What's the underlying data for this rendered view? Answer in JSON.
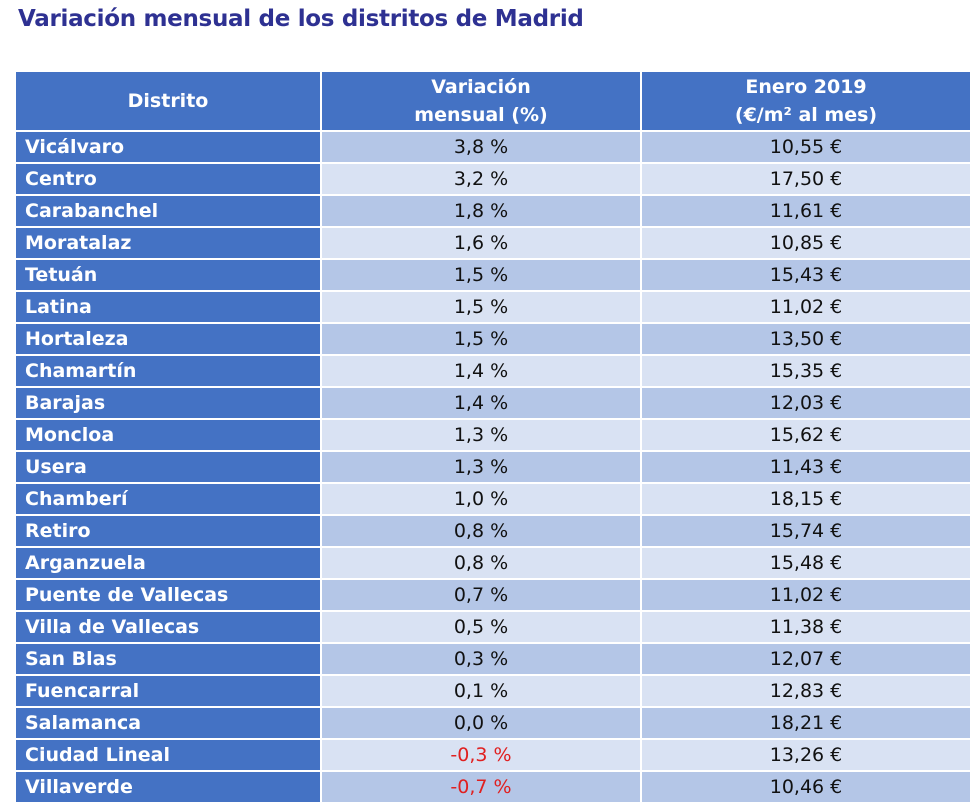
{
  "title": "Variación mensual de los distritos de Madrid",
  "colors": {
    "header": "#4472c4",
    "row_dark": "#b4c6e7",
    "row_light": "#d9e2f3",
    "title": "#2e3192",
    "negative": "#e02020"
  },
  "chart_data": {
    "type": "table",
    "columns": [
      "Distrito",
      "Variación mensual (%)",
      "Enero 2019 (€/m² al mes)"
    ],
    "header": {
      "col1": "Distrito",
      "col2_line1": "Variación",
      "col2_line2": "mensual (%)",
      "col3_line1": "Enero 2019",
      "col3_line2": "(€/m² al mes)"
    },
    "rows": [
      {
        "distrito": "Vicálvaro",
        "variacion": "3,8 %",
        "precio": "10,55 €"
      },
      {
        "distrito": "Centro",
        "variacion": "3,2 %",
        "precio": "17,50 €"
      },
      {
        "distrito": "Carabanchel",
        "variacion": "1,8 %",
        "precio": "11,61 €"
      },
      {
        "distrito": "Moratalaz",
        "variacion": "1,6 %",
        "precio": "10,85 €"
      },
      {
        "distrito": "Tetuán",
        "variacion": "1,5 %",
        "precio": "15,43 €"
      },
      {
        "distrito": "Latina",
        "variacion": "1,5 %",
        "precio": "11,02 €"
      },
      {
        "distrito": "Hortaleza",
        "variacion": "1,5 %",
        "precio": "13,50 €"
      },
      {
        "distrito": "Chamartín",
        "variacion": "1,4 %",
        "precio": "15,35 €"
      },
      {
        "distrito": "Barajas",
        "variacion": "1,4 %",
        "precio": "12,03 €"
      },
      {
        "distrito": "Moncloa",
        "variacion": "1,3 %",
        "precio": "15,62 €"
      },
      {
        "distrito": "Usera",
        "variacion": "1,3 %",
        "precio": "11,43 €"
      },
      {
        "distrito": "Chamberí",
        "variacion": "1,0 %",
        "precio": "18,15 €"
      },
      {
        "distrito": "Retiro",
        "variacion": "0,8 %",
        "precio": "15,74 €"
      },
      {
        "distrito": "Arganzuela",
        "variacion": "0,8 %",
        "precio": "15,48 €"
      },
      {
        "distrito": "Puente de Vallecas",
        "variacion": "0,7 %",
        "precio": "11,02 €"
      },
      {
        "distrito": "Villa de Vallecas",
        "variacion": "0,5 %",
        "precio": "11,38 €"
      },
      {
        "distrito": "San Blas",
        "variacion": "0,3 %",
        "precio": "12,07 €"
      },
      {
        "distrito": "Fuencarral",
        "variacion": "0,1 %",
        "precio": "12,83 €"
      },
      {
        "distrito": "Salamanca",
        "variacion": "0,0 %",
        "precio": "18,21 €"
      },
      {
        "distrito": "Ciudad Lineal",
        "variacion": "-0,3 %",
        "precio": "13,26 €",
        "negative": true
      },
      {
        "distrito": "Villaverde",
        "variacion": "-0,7 %",
        "precio": "10,46 €",
        "negative": true
      }
    ]
  }
}
